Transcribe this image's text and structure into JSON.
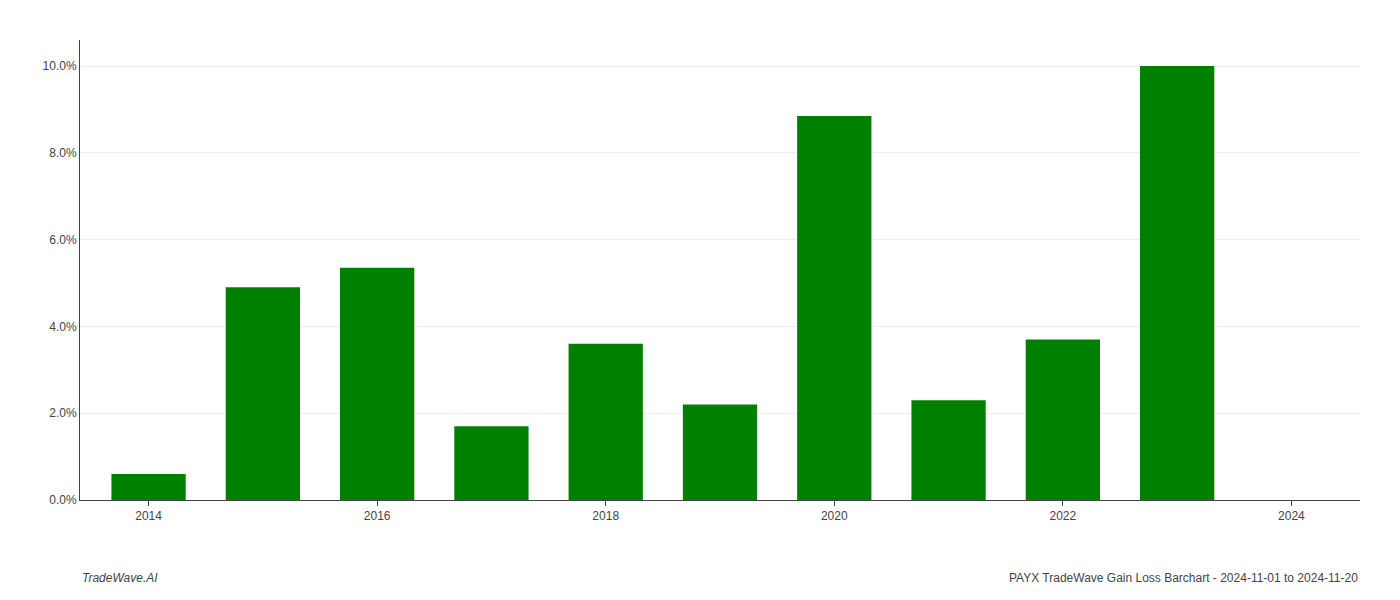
{
  "chart_data": {
    "type": "bar",
    "x": [
      2014,
      2015,
      2016,
      2017,
      2018,
      2019,
      2020,
      2021,
      2022,
      2023
    ],
    "values": [
      0.006,
      0.049,
      0.0535,
      0.017,
      0.036,
      0.022,
      0.0885,
      0.023,
      0.037,
      0.1
    ],
    "color": "#008000",
    "xlim": [
      2013.4,
      2024.6
    ],
    "xticks": [
      2014,
      2016,
      2018,
      2020,
      2022,
      2024
    ],
    "ylim": [
      0,
      0.106
    ],
    "yticks": [
      {
        "value": 0.0,
        "label": "0.0%"
      },
      {
        "value": 0.02,
        "label": "2.0%"
      },
      {
        "value": 0.04,
        "label": "4.0%"
      },
      {
        "value": 0.06,
        "label": "6.0%"
      },
      {
        "value": 0.08,
        "label": "8.0%"
      },
      {
        "value": 0.1,
        "label": "10.0%"
      }
    ],
    "grid": true,
    "annotations": [
      "TradeWave.AI",
      "PAYX TradeWave Gain Loss Barchart - 2024-11-01 to 2024-11-20"
    ]
  }
}
